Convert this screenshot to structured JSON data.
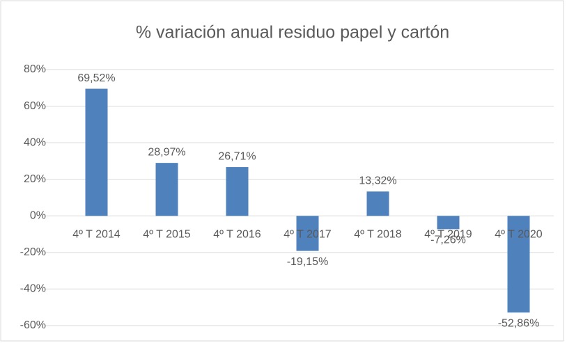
{
  "chart_data": {
    "type": "bar",
    "title": "% variación anual residuo papel y cartón",
    "categories": [
      "4º T 2014",
      "4º T 2015",
      "4º T 2016",
      "4º T 2017",
      "4º T 2018",
      "4º T 2019",
      "4º T 2020"
    ],
    "values": [
      69.52,
      28.97,
      26.71,
      -19.15,
      13.32,
      -7.26,
      -52.86
    ],
    "value_labels": [
      "69,52%",
      "28,97%",
      "26,71%",
      "-19,15%",
      "13,32%",
      "-7,26%",
      "-52,86%"
    ],
    "color": "#4f81bd",
    "ylim": [
      -60,
      80
    ],
    "yticks": [
      {
        "value": -60,
        "label": "-60%"
      },
      {
        "value": -40,
        "label": "-40%"
      },
      {
        "value": -20,
        "label": "-20%"
      },
      {
        "value": 0,
        "label": "0%"
      },
      {
        "value": 20,
        "label": "20%"
      },
      {
        "value": 40,
        "label": "40%"
      },
      {
        "value": 60,
        "label": "60%"
      },
      {
        "value": 80,
        "label": "80%"
      }
    ],
    "grid": true
  }
}
